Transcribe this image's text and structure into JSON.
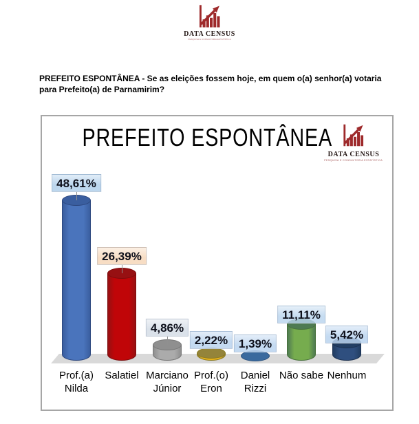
{
  "logo": {
    "name": "DATA CENSUS",
    "tagline": "PESQUISA E CONSULTORIA ESTATÍSTICA",
    "color": "#9e2a2b",
    "name_color": "#221513",
    "tagline_color": "#a85c5c"
  },
  "question": {
    "text": "PREFEITO ESPONTÂNEA - Se as eleições fossem hoje, em quem o(a) senhor(a) votaria para Prefeito(a) de Parnamirim?"
  },
  "chart_data": {
    "type": "bar",
    "style": "3d-cylinder",
    "title": "PREFEITO ESPONTÂNEA",
    "categories": [
      [
        "Prof.(a)",
        "Nilda"
      ],
      [
        "Salatiel"
      ],
      [
        "Marciano",
        "Júnior"
      ],
      [
        "Prof.(o)",
        "Eron"
      ],
      [
        "Daniel",
        "Rizzi"
      ],
      [
        "Não sabe"
      ],
      [
        "Nenhum"
      ]
    ],
    "values": [
      48.61,
      26.39,
      4.86,
      2.22,
      1.39,
      11.11,
      5.42
    ],
    "value_labels": [
      "48,61%",
      "26,39%",
      "4,86%",
      "2,22%",
      "1,39%",
      "11,11%",
      "5,42%"
    ],
    "bar_colors": [
      "#4a74bc",
      "#c00508",
      "#ababab",
      "#eab41c",
      "#4e86c1",
      "#76ac4e",
      "#2f4f7f"
    ],
    "bar_top_colors": [
      "#3a5e9f",
      "#971012",
      "#8f8f8f",
      "#94843a",
      "#3a6a9e",
      "#4e7a52",
      "#223e63"
    ],
    "bar_edge_colors": [
      "#2c477e",
      "#7c0c0c",
      "#767676",
      "#8a7a20",
      "#2f5580",
      "#47703a",
      "#1b3050"
    ],
    "label_backgrounds": [
      "#bdd7ee",
      "#f7ddc4",
      "rgba(216,223,232,0.92)",
      "rgba(186,212,238,0.85)",
      "rgba(186,212,238,0.85)",
      "rgba(186,212,238,0.82)",
      "rgba(186,212,238,0.85)"
    ],
    "value_text_color": "#0d0f1a",
    "leader_color": "#909090",
    "floor_color": "#d9d9d9",
    "frame_color": "#a6a6a6",
    "xlabel": "",
    "ylabel": "",
    "ylim": [
      0,
      55
    ],
    "gridlines": false,
    "legend": false
  }
}
